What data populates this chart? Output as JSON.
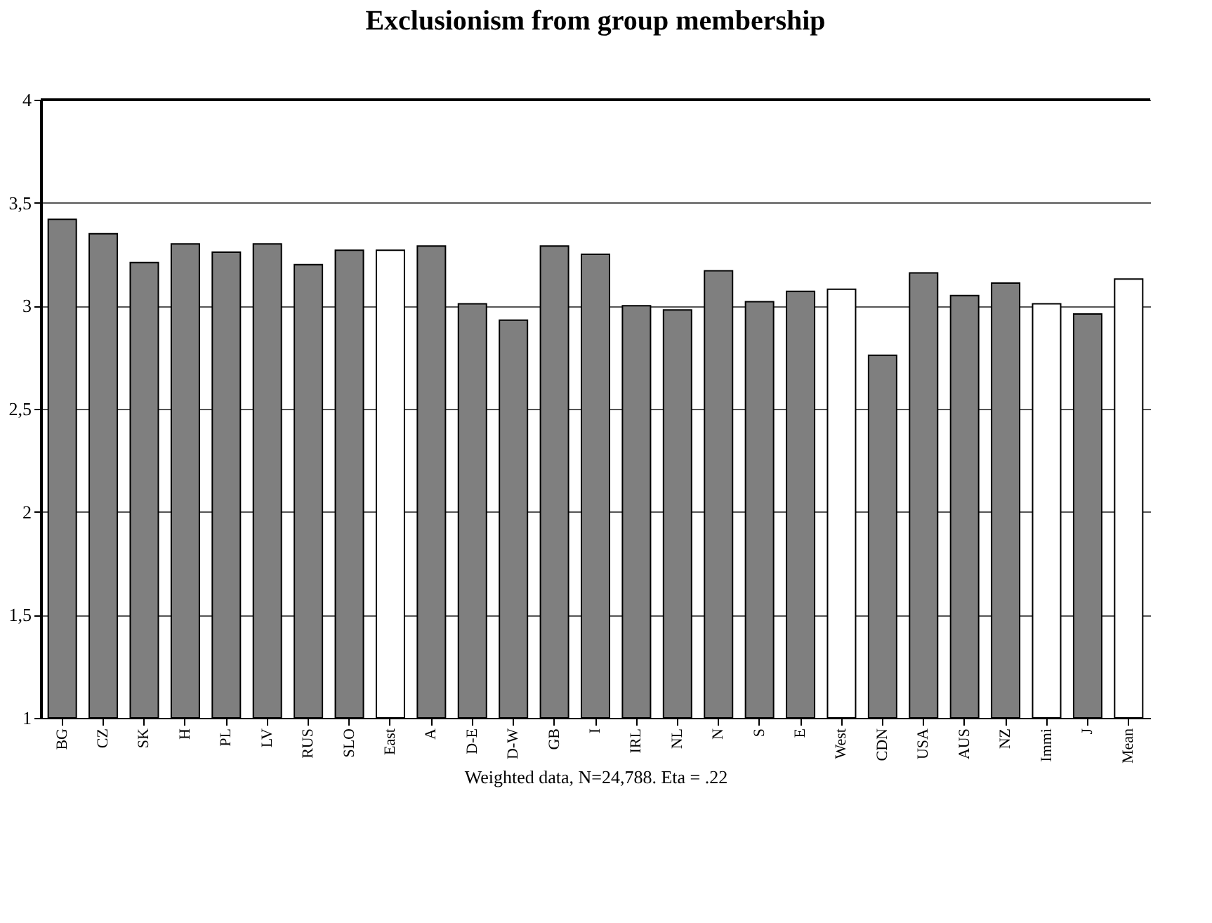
{
  "chart_data": {
    "type": "bar",
    "title": "Exclusionism from group membership",
    "xlabel": "Weighted data, N=24,788. Eta = .22",
    "categories": [
      "BG",
      "CZ",
      "SK",
      "H",
      "PL",
      "LV",
      "RUS",
      "SLO",
      "East",
      "A",
      "D-E",
      "D-W",
      "GB",
      "I",
      "IRL",
      "NL",
      "N",
      "S",
      "E",
      "West",
      "CDN",
      "USA",
      "AUS",
      "NZ",
      "Immi",
      "J",
      "Mean"
    ],
    "values": [
      3.42,
      3.35,
      3.21,
      3.3,
      3.26,
      3.3,
      3.2,
      3.27,
      3.27,
      3.29,
      3.01,
      2.93,
      3.29,
      3.25,
      3.0,
      2.98,
      3.17,
      3.02,
      3.07,
      3.08,
      2.76,
      3.16,
      3.05,
      3.11,
      3.01,
      2.96,
      3.13
    ],
    "colors": [
      "#7f7f7f",
      "#7f7f7f",
      "#7f7f7f",
      "#7f7f7f",
      "#7f7f7f",
      "#7f7f7f",
      "#7f7f7f",
      "#7f7f7f",
      "#ffffff",
      "#7f7f7f",
      "#7f7f7f",
      "#7f7f7f",
      "#7f7f7f",
      "#7f7f7f",
      "#7f7f7f",
      "#7f7f7f",
      "#7f7f7f",
      "#7f7f7f",
      "#7f7f7f",
      "#ffffff",
      "#7f7f7f",
      "#7f7f7f",
      "#7f7f7f",
      "#7f7f7f",
      "#ffffff",
      "#7f7f7f",
      "#ffffff"
    ],
    "ylim": [
      1,
      4
    ],
    "yticks": [
      1,
      {
        "value": 1.5,
        "label": "1,5"
      },
      2,
      {
        "value": 2.5,
        "label": "2,5"
      },
      3,
      {
        "value": 3.5,
        "label": "3,5"
      },
      4
    ],
    "grid": "y"
  }
}
